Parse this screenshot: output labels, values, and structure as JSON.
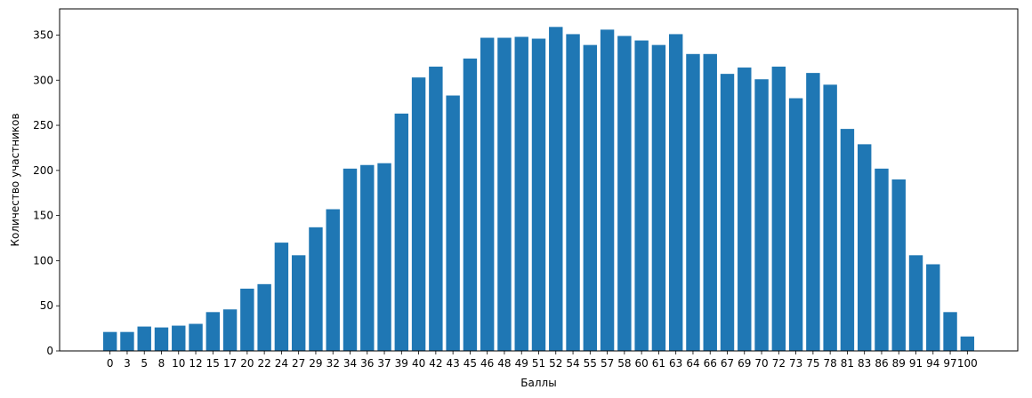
{
  "chart_data": {
    "type": "bar",
    "title": "",
    "xlabel": "Баллы",
    "ylabel": "Количество участников",
    "categories": [
      "0",
      "3",
      "5",
      "8",
      "10",
      "12",
      "15",
      "17",
      "20",
      "22",
      "24",
      "27",
      "29",
      "32",
      "34",
      "36",
      "37",
      "39",
      "40",
      "42",
      "43",
      "45",
      "46",
      "48",
      "49",
      "51",
      "52",
      "54",
      "55",
      "57",
      "58",
      "60",
      "61",
      "63",
      "64",
      "66",
      "67",
      "69",
      "70",
      "72",
      "73",
      "75",
      "78",
      "81",
      "83",
      "86",
      "89",
      "91",
      "94",
      "97",
      "100"
    ],
    "values": [
      21,
      21,
      27,
      26,
      28,
      30,
      43,
      46,
      69,
      74,
      120,
      106,
      137,
      157,
      202,
      206,
      208,
      263,
      303,
      315,
      283,
      324,
      347,
      347,
      348,
      346,
      359,
      351,
      339,
      356,
      349,
      344,
      339,
      351,
      329,
      329,
      307,
      314,
      301,
      315,
      280,
      308,
      295,
      246,
      229,
      202,
      190,
      106,
      96,
      43,
      16
    ],
    "ylim": [
      0,
      379
    ],
    "yticks": [
      0,
      50,
      100,
      150,
      200,
      250,
      300,
      350
    ],
    "grid": false,
    "legend": "none",
    "bar_color": "#1f77b4"
  }
}
